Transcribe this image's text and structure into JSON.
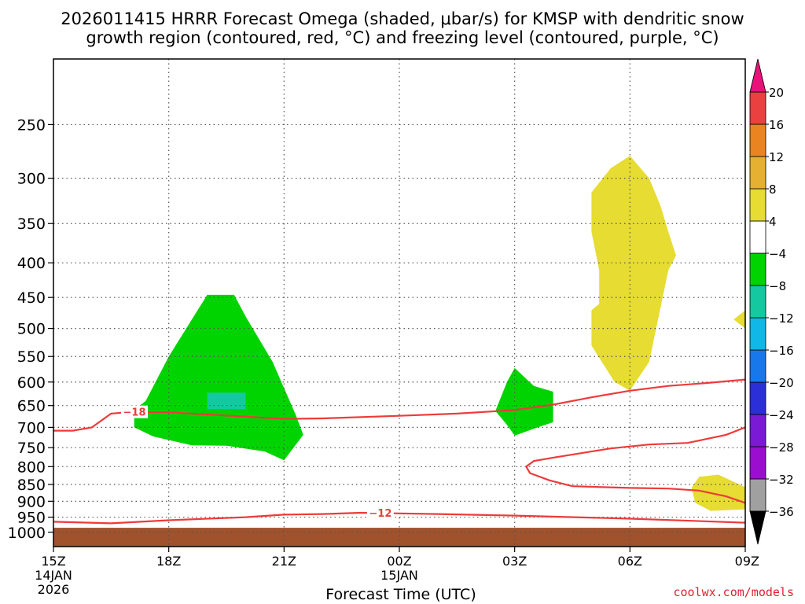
{
  "title_line1": "2026011415 HRRR Forecast Omega (shaded, μbar/s) for KMSP with dendritic snow",
  "title_line2": "growth region (contoured, red, °C) and freezing level (contoured, purple, °C)",
  "credit": "coolwx.com/models",
  "chart_data": {
    "type": "heatmap",
    "xlabel": "Forecast Time (UTC)",
    "x_ticks": [
      {
        "hour": 0,
        "lines": [
          "15Z",
          "14JAN",
          "2026"
        ]
      },
      {
        "hour": 3,
        "lines": [
          "18Z"
        ]
      },
      {
        "hour": 6,
        "lines": [
          "21Z"
        ]
      },
      {
        "hour": 9,
        "lines": [
          "00Z",
          "15JAN"
        ]
      },
      {
        "hour": 12,
        "lines": [
          "03Z"
        ]
      },
      {
        "hour": 15,
        "lines": [
          "06Z"
        ]
      },
      {
        "hour": 18,
        "lines": [
          "09Z"
        ]
      }
    ],
    "x_range_hours": [
      0,
      18
    ],
    "y_ticks": [
      250,
      300,
      350,
      400,
      450,
      500,
      550,
      600,
      650,
      700,
      750,
      800,
      850,
      900,
      950,
      1000
    ],
    "y_range_hPa": [
      200,
      1050
    ],
    "y_scale": "log",
    "grid": true,
    "ground_level_hPa": 985,
    "ground_color": "#a0522d",
    "colorbar": {
      "levels": [
        -36,
        -32,
        -28,
        -24,
        -20,
        -16,
        -12,
        -8,
        -4,
        4,
        8,
        12,
        16,
        20
      ],
      "colors": [
        "#000000",
        "#a0a0a0",
        "#9b0ecf",
        "#7a19d6",
        "#2a2fd8",
        "#1778ec",
        "#0fb8e6",
        "#14c9a0",
        "#00d400",
        "#ffffff",
        "#e6dc32",
        "#e6b030",
        "#ea8420",
        "#ea4040",
        "#e8127a"
      ],
      "tick_labels": [
        "20",
        "16",
        "12",
        "8",
        "4",
        "−4",
        "−8",
        "−12",
        "−16",
        "−20",
        "−24",
        "−28",
        "−32",
        "−36"
      ]
    },
    "shaded_regions": [
      {
        "value_class": "-8 to -4",
        "color": "#00d400",
        "points": [
          [
            2.1,
            700
          ],
          [
            2.6,
            722
          ],
          [
            3.6,
            744
          ],
          [
            4.5,
            745
          ],
          [
            5.5,
            760
          ],
          [
            6.0,
            783
          ],
          [
            6.5,
            718
          ],
          [
            6.3,
            670
          ],
          [
            5.7,
            560
          ],
          [
            5.0,
            480
          ],
          [
            4.7,
            446
          ],
          [
            4.0,
            446
          ],
          [
            3.0,
            550
          ],
          [
            2.4,
            640
          ],
          [
            2.1,
            660
          ]
        ]
      },
      {
        "value_class": "-12 to -8",
        "color": "#14c9a0",
        "points": [
          [
            4.0,
            622
          ],
          [
            5.0,
            622
          ],
          [
            5.0,
            658
          ],
          [
            4.0,
            658
          ]
        ]
      },
      {
        "value_class": "-8 to -4",
        "color": "#00d400",
        "points": [
          [
            11.5,
            662
          ],
          [
            11.8,
            694
          ],
          [
            12.0,
            720
          ],
          [
            12.6,
            700
          ],
          [
            13.0,
            688
          ],
          [
            13.0,
            620
          ],
          [
            12.5,
            608
          ],
          [
            12.0,
            572
          ],
          [
            11.8,
            600
          ]
        ]
      },
      {
        "value_class": "4 to 8",
        "color": "#e6dc32",
        "points": [
          [
            14.0,
            470
          ],
          [
            14.0,
            530
          ],
          [
            14.6,
            600
          ],
          [
            15.0,
            618
          ],
          [
            15.5,
            560
          ],
          [
            16.0,
            410
          ],
          [
            16.2,
            390
          ],
          [
            16.0,
            360
          ],
          [
            15.8,
            330
          ],
          [
            15.5,
            300
          ],
          [
            15.0,
            278
          ],
          [
            14.5,
            290
          ],
          [
            14.0,
            315
          ],
          [
            14.0,
            360
          ],
          [
            14.2,
            410
          ],
          [
            14.2,
            460
          ]
        ]
      },
      {
        "value_class": "4 to 8",
        "color": "#e6dc32",
        "points": [
          [
            18.0,
            470
          ],
          [
            17.7,
            485
          ],
          [
            18.0,
            500
          ],
          [
            18.0,
            520
          ]
        ]
      },
      {
        "value_class": "4 to 8",
        "color": "#e6dc32",
        "points": [
          [
            16.6,
            860
          ],
          [
            16.7,
            905
          ],
          [
            17.1,
            930
          ],
          [
            18.0,
            925
          ],
          [
            18.0,
            858
          ],
          [
            17.3,
            822
          ],
          [
            16.8,
            828
          ]
        ]
      }
    ],
    "contours": [
      {
        "label": "−18",
        "color": "#ee3a3a",
        "points": [
          [
            0,
            708
          ],
          [
            0.5,
            708
          ],
          [
            1.0,
            700
          ],
          [
            1.5,
            668
          ],
          [
            1.9,
            665
          ],
          [
            3.0,
            665
          ],
          [
            6.0,
            680
          ],
          [
            7.0,
            679
          ],
          [
            9.0,
            673
          ],
          [
            10.5,
            668
          ],
          [
            12.0,
            660
          ],
          [
            13.0,
            648
          ],
          [
            14.0,
            632
          ],
          [
            15.0,
            618
          ],
          [
            16.0,
            608
          ],
          [
            17.0,
            602
          ],
          [
            18.0,
            595
          ]
        ],
        "label_at": [
          1.8,
          664
        ]
      },
      {
        "label": "−12",
        "color": "#ee3a3a",
        "points": [
          [
            0,
            965
          ],
          [
            1.5,
            970
          ],
          [
            3.0,
            960
          ],
          [
            5.0,
            950
          ],
          [
            6.0,
            942
          ],
          [
            7.0,
            940
          ],
          [
            8.0,
            936
          ],
          [
            10.0,
            940
          ],
          [
            12.0,
            945
          ],
          [
            15.0,
            955
          ],
          [
            18.0,
            968
          ]
        ],
        "label_at": [
          8.2,
          936
        ]
      },
      {
        "label": "−12 dendritic lower",
        "color": "#ee3a3a",
        "points": [
          [
            18.0,
            700
          ],
          [
            17.5,
            718
          ],
          [
            17.0,
            728
          ],
          [
            16.5,
            738
          ],
          [
            15.5,
            742
          ],
          [
            14.5,
            752
          ],
          [
            14.0,
            760
          ],
          [
            13.0,
            776
          ],
          [
            12.5,
            785
          ],
          [
            12.3,
            800
          ],
          [
            12.4,
            818
          ],
          [
            12.9,
            838
          ],
          [
            13.5,
            855
          ],
          [
            15.0,
            860
          ],
          [
            16.0,
            862
          ],
          [
            16.8,
            868
          ],
          [
            17.5,
            885
          ],
          [
            18.0,
            905
          ]
        ],
        "label_at": null
      }
    ]
  }
}
